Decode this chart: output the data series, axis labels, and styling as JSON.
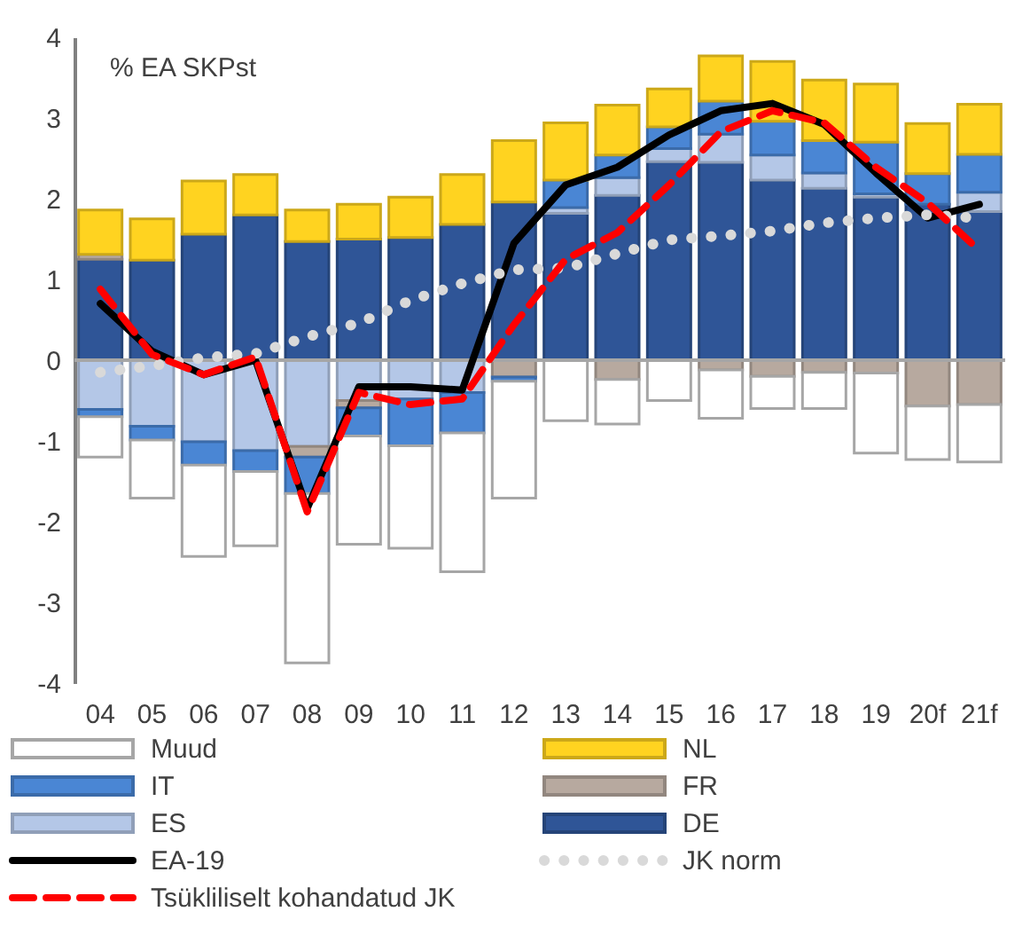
{
  "chart_data": {
    "type": "bar",
    "stacked": true,
    "title": "% EA SKPst",
    "categories": [
      "04",
      "05",
      "06",
      "07",
      "08",
      "09",
      "10",
      "11",
      "12",
      "13",
      "14",
      "15",
      "16",
      "17",
      "18",
      "19",
      "20f",
      "21f"
    ],
    "series": [
      {
        "name": "DE",
        "color": "#2f5597",
        "values": [
          1.25,
          1.24,
          1.56,
          1.8,
          1.47,
          1.5,
          1.52,
          1.68,
          1.96,
          1.82,
          2.04,
          2.46,
          2.45,
          2.23,
          2.13,
          2.02,
          1.93,
          1.84
        ]
      },
      {
        "name": "ES",
        "color": "#b4c7e7",
        "values": [
          -0.61,
          -0.82,
          -1.01,
          -1.12,
          -1.07,
          -0.5,
          -0.48,
          -0.4,
          null,
          0.07,
          0.22,
          0.16,
          0.35,
          0.31,
          0.19,
          0.04,
          null,
          0.24
        ]
      },
      {
        "name": "FR",
        "color": "#b7a99f",
        "values": [
          0.06,
          null,
          null,
          null,
          -0.13,
          -0.09,
          null,
          null,
          -0.21,
          null,
          -0.24,
          null,
          -0.12,
          -0.2,
          -0.15,
          -0.16,
          -0.57,
          -0.55
        ]
      },
      {
        "name": "IT",
        "color": "#4a86d4",
        "values": [
          -0.09,
          -0.17,
          -0.29,
          -0.26,
          -0.45,
          -0.35,
          -0.58,
          -0.5,
          -0.05,
          0.34,
          0.28,
          0.27,
          0.41,
          0.42,
          0.4,
          0.64,
          0.38,
          0.47
        ]
      },
      {
        "name": "NL",
        "color": "#ffd320",
        "values": [
          0.55,
          0.51,
          0.66,
          0.5,
          0.39,
          0.43,
          0.5,
          0.62,
          0.76,
          0.71,
          0.62,
          0.47,
          0.56,
          0.74,
          0.75,
          0.72,
          0.62,
          0.62
        ]
      },
      {
        "name": "Muud",
        "color": "#ffffff",
        "values": [
          -0.5,
          -0.72,
          -1.13,
          -0.92,
          -2.1,
          -1.34,
          -1.27,
          -1.72,
          -1.45,
          -0.75,
          -0.55,
          -0.5,
          -0.6,
          -0.4,
          -0.45,
          -0.99,
          -0.66,
          -0.71
        ]
      },
      {
        "name": "EA-19",
        "type": "line",
        "color": "#000000",
        "line_style": "solid",
        "values": [
          0.7,
          0.11,
          -0.18,
          0.0,
          -1.84,
          -0.33,
          -0.33,
          -0.37,
          1.45,
          2.17,
          2.39,
          2.79,
          3.09,
          3.18,
          2.92,
          2.32,
          1.76,
          1.93
        ]
      },
      {
        "name": "JK norm",
        "type": "line",
        "color": "#d9d9d9",
        "line_style": "dotted",
        "values": [
          -0.15,
          -0.07,
          0.03,
          0.08,
          0.29,
          0.46,
          0.74,
          0.95,
          1.12,
          1.14,
          1.32,
          1.49,
          1.54,
          1.6,
          1.7,
          1.76,
          1.8,
          1.76
        ]
      },
      {
        "name": "Tsükliliselt kohandatud JK",
        "type": "line",
        "color": "#ff0000",
        "line_style": "dashed",
        "values": [
          0.88,
          0.07,
          -0.18,
          0.04,
          -1.88,
          -0.4,
          -0.55,
          -0.48,
          0.44,
          1.25,
          1.58,
          2.17,
          2.83,
          3.09,
          2.94,
          2.39,
          1.95,
          1.36
        ]
      }
    ],
    "ylim": [
      -4,
      4
    ],
    "yticks": [
      -4,
      -3,
      -2,
      -1,
      0,
      1,
      2,
      3,
      4
    ],
    "grid": false,
    "legend": "bottom",
    "marker": "none",
    "ref_lines": [
      {
        "axis": "y",
        "value": 0,
        "color": "#a6a6a6"
      }
    ]
  }
}
